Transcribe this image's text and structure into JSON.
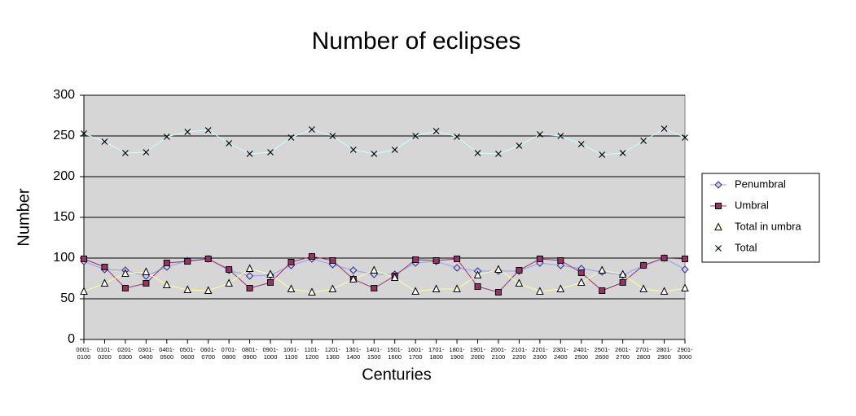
{
  "chart_data": {
    "type": "line",
    "title": "Number of eclipses",
    "xlabel": "Centuries",
    "ylabel": "Number",
    "categories": [
      "0001-0100",
      "0101-0200",
      "0201-0300",
      "0301-0400",
      "0401-0500",
      "0501-0600",
      "0601-0700",
      "0701-0800",
      "0801-0900",
      "0901-1000",
      "1001-1100",
      "1101-1200",
      "1201-1300",
      "1301-1400",
      "1401-1500",
      "1501-1600",
      "1601-1700",
      "1701-1800",
      "1801-1900",
      "1901-2000",
      "2001-2100",
      "2101-2200",
      "2201-2300",
      "2301-2400",
      "2401-2500",
      "2501-2600",
      "2601-2700",
      "2701-2800",
      "2801-2900",
      "2901-3000"
    ],
    "series": [
      {
        "name": "Penumbral",
        "color": "#9999ff",
        "marker": "diamond",
        "marker_color": "#ccccff",
        "values": [
          96,
          86,
          85,
          78,
          89,
          97,
          99,
          85,
          78,
          79,
          91,
          99,
          92,
          85,
          80,
          80,
          94,
          96,
          88,
          84,
          84,
          84,
          94,
          91,
          87,
          83,
          79,
          91,
          100,
          86
        ]
      },
      {
        "name": "Umbral",
        "color": "#993366",
        "marker": "square",
        "marker_color": "#993366",
        "values": [
          99,
          89,
          63,
          69,
          94,
          96,
          99,
          86,
          63,
          70,
          95,
          102,
          97,
          74,
          63,
          78,
          98,
          97,
          99,
          65,
          58,
          85,
          99,
          97,
          82,
          60,
          70,
          91,
          100,
          99
        ]
      },
      {
        "name": "Total in umbra",
        "color": "#ffff99",
        "marker": "triangle",
        "marker_color": "#ffffff",
        "values": [
          59,
          69,
          81,
          83,
          67,
          61,
          60,
          69,
          87,
          80,
          62,
          58,
          62,
          74,
          85,
          76,
          59,
          62,
          62,
          79,
          86,
          69,
          59,
          62,
          70,
          85,
          80,
          62,
          59,
          63
        ]
      },
      {
        "name": "Total",
        "color": "#ccffff",
        "marker": "x",
        "marker_color": "#000000",
        "values": [
          253,
          243,
          229,
          230,
          249,
          255,
          257,
          241,
          228,
          230,
          248,
          258,
          250,
          233,
          228,
          233,
          250,
          256,
          249,
          229,
          228,
          238,
          252,
          250,
          240,
          227,
          229,
          244,
          259,
          248
        ]
      }
    ],
    "ylim": [
      0,
      300
    ],
    "yticks": [
      0,
      50,
      100,
      150,
      200,
      250,
      300
    ],
    "grid": true,
    "legend": "right"
  }
}
